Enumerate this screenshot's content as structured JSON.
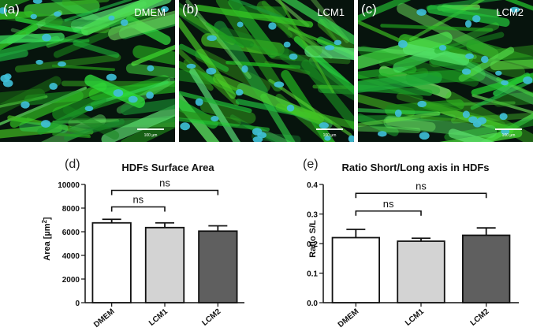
{
  "micrographs": [
    {
      "letter": "(a)",
      "label": "DMEM",
      "scale": "100 µm"
    },
    {
      "letter": "(b)",
      "label": "LCM1",
      "scale": "100 µm"
    },
    {
      "letter": "(c)",
      "label": "LCM2",
      "scale": "100 µm"
    }
  ],
  "colors": {
    "actin": "#2ca22a",
    "nucleus": "#3fc0d8",
    "dmem_bar": "#ffffff",
    "lcm1_bar": "#d3d3d3",
    "lcm2_bar": "#5f5f5f"
  },
  "chart_data": [
    {
      "letter": "(d)",
      "type": "bar",
      "title": "HDFs Surface Area",
      "ylabel_main": "Area [",
      "ylabel_unit": "µm",
      "ylabel_sup": "2",
      "ylabel_end": "]",
      "categories": [
        "DMEM",
        "LCM1",
        "LCM2"
      ],
      "values": [
        6750,
        6350,
        6050
      ],
      "errors": [
        300,
        400,
        450
      ],
      "ylim": [
        0,
        10000
      ],
      "yticks": [
        "0",
        "2000",
        "4000",
        "6000",
        "8000",
        "10000"
      ],
      "significance": [
        {
          "from": 0,
          "to": 1,
          "level": 8100,
          "label": "ns"
        },
        {
          "from": 0,
          "to": 2,
          "level": 9500,
          "label": "ns"
        }
      ]
    },
    {
      "letter": "(e)",
      "type": "bar",
      "title": "Ratio Short/Long axis in HDFs",
      "ylabel": "Ratio S/L",
      "categories": [
        "DMEM",
        "LCM1",
        "LCM2"
      ],
      "values": [
        0.22,
        0.208,
        0.228
      ],
      "errors": [
        0.028,
        0.01,
        0.025
      ],
      "ylim": [
        0,
        0.4
      ],
      "yticks": [
        "0.0",
        "0.1",
        "0.2",
        "0.3",
        "0.4"
      ],
      "significance": [
        {
          "from": 0,
          "to": 1,
          "level": 0.31,
          "label": "ns"
        },
        {
          "from": 0,
          "to": 2,
          "level": 0.37,
          "label": "ns"
        }
      ]
    }
  ]
}
